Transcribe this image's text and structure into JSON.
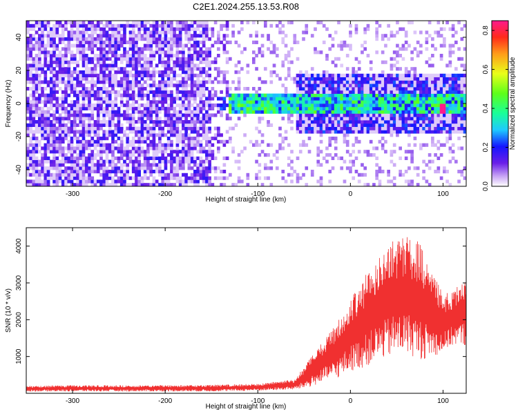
{
  "title": "C2E1.2024.255.13.53.R08",
  "chart_data": [
    {
      "type": "heatmap",
      "xlabel": "Height of straight line (km)",
      "ylabel": "Frequency (Hz)",
      "xlim": [
        -350,
        125
      ],
      "ylim": [
        -50,
        50
      ],
      "x_ticks": [
        -300,
        -200,
        -100,
        0,
        100
      ],
      "y_ticks": [
        -40,
        -20,
        0,
        20,
        40
      ],
      "colorbar": {
        "label": "Normalized spectral amplitude",
        "range": [
          0.0,
          0.85
        ],
        "ticks": [
          "0.0",
          "0.2",
          "0.4",
          "0.6",
          "0.8"
        ]
      },
      "features": {
        "noise_region_x": [
          -350,
          -150
        ],
        "signal_band_center_hz": 0,
        "signal_band_halfwidth_hz": 6,
        "signal_start_x": -130,
        "peak": {
          "x": 100,
          "y": -3,
          "value": 0.85
        }
      }
    },
    {
      "type": "line",
      "xlabel": "Height of straight line (km)",
      "ylabel": "SNR (10 * v/v)",
      "xlim": [
        -350,
        125
      ],
      "ylim": [
        0,
        4500
      ],
      "x_ticks": [
        -300,
        -200,
        -100,
        0,
        100
      ],
      "y_ticks": [
        1000,
        2000,
        3000,
        4000
      ],
      "series_color": "#f03030",
      "envelope_x": [
        -350,
        -300,
        -200,
        -150,
        -100,
        -60,
        -45,
        -30,
        -15,
        0,
        15,
        30,
        45,
        60,
        75,
        90,
        100,
        110,
        125
      ],
      "envelope_low": [
        50,
        50,
        50,
        50,
        70,
        100,
        150,
        300,
        400,
        600,
        700,
        900,
        1000,
        1100,
        900,
        1000,
        1100,
        1300,
        1300
      ],
      "envelope_high": [
        200,
        220,
        220,
        230,
        260,
        380,
        900,
        1400,
        1900,
        2600,
        3200,
        3700,
        4200,
        4300,
        4100,
        3200,
        2700,
        2800,
        3200
      ]
    }
  ]
}
